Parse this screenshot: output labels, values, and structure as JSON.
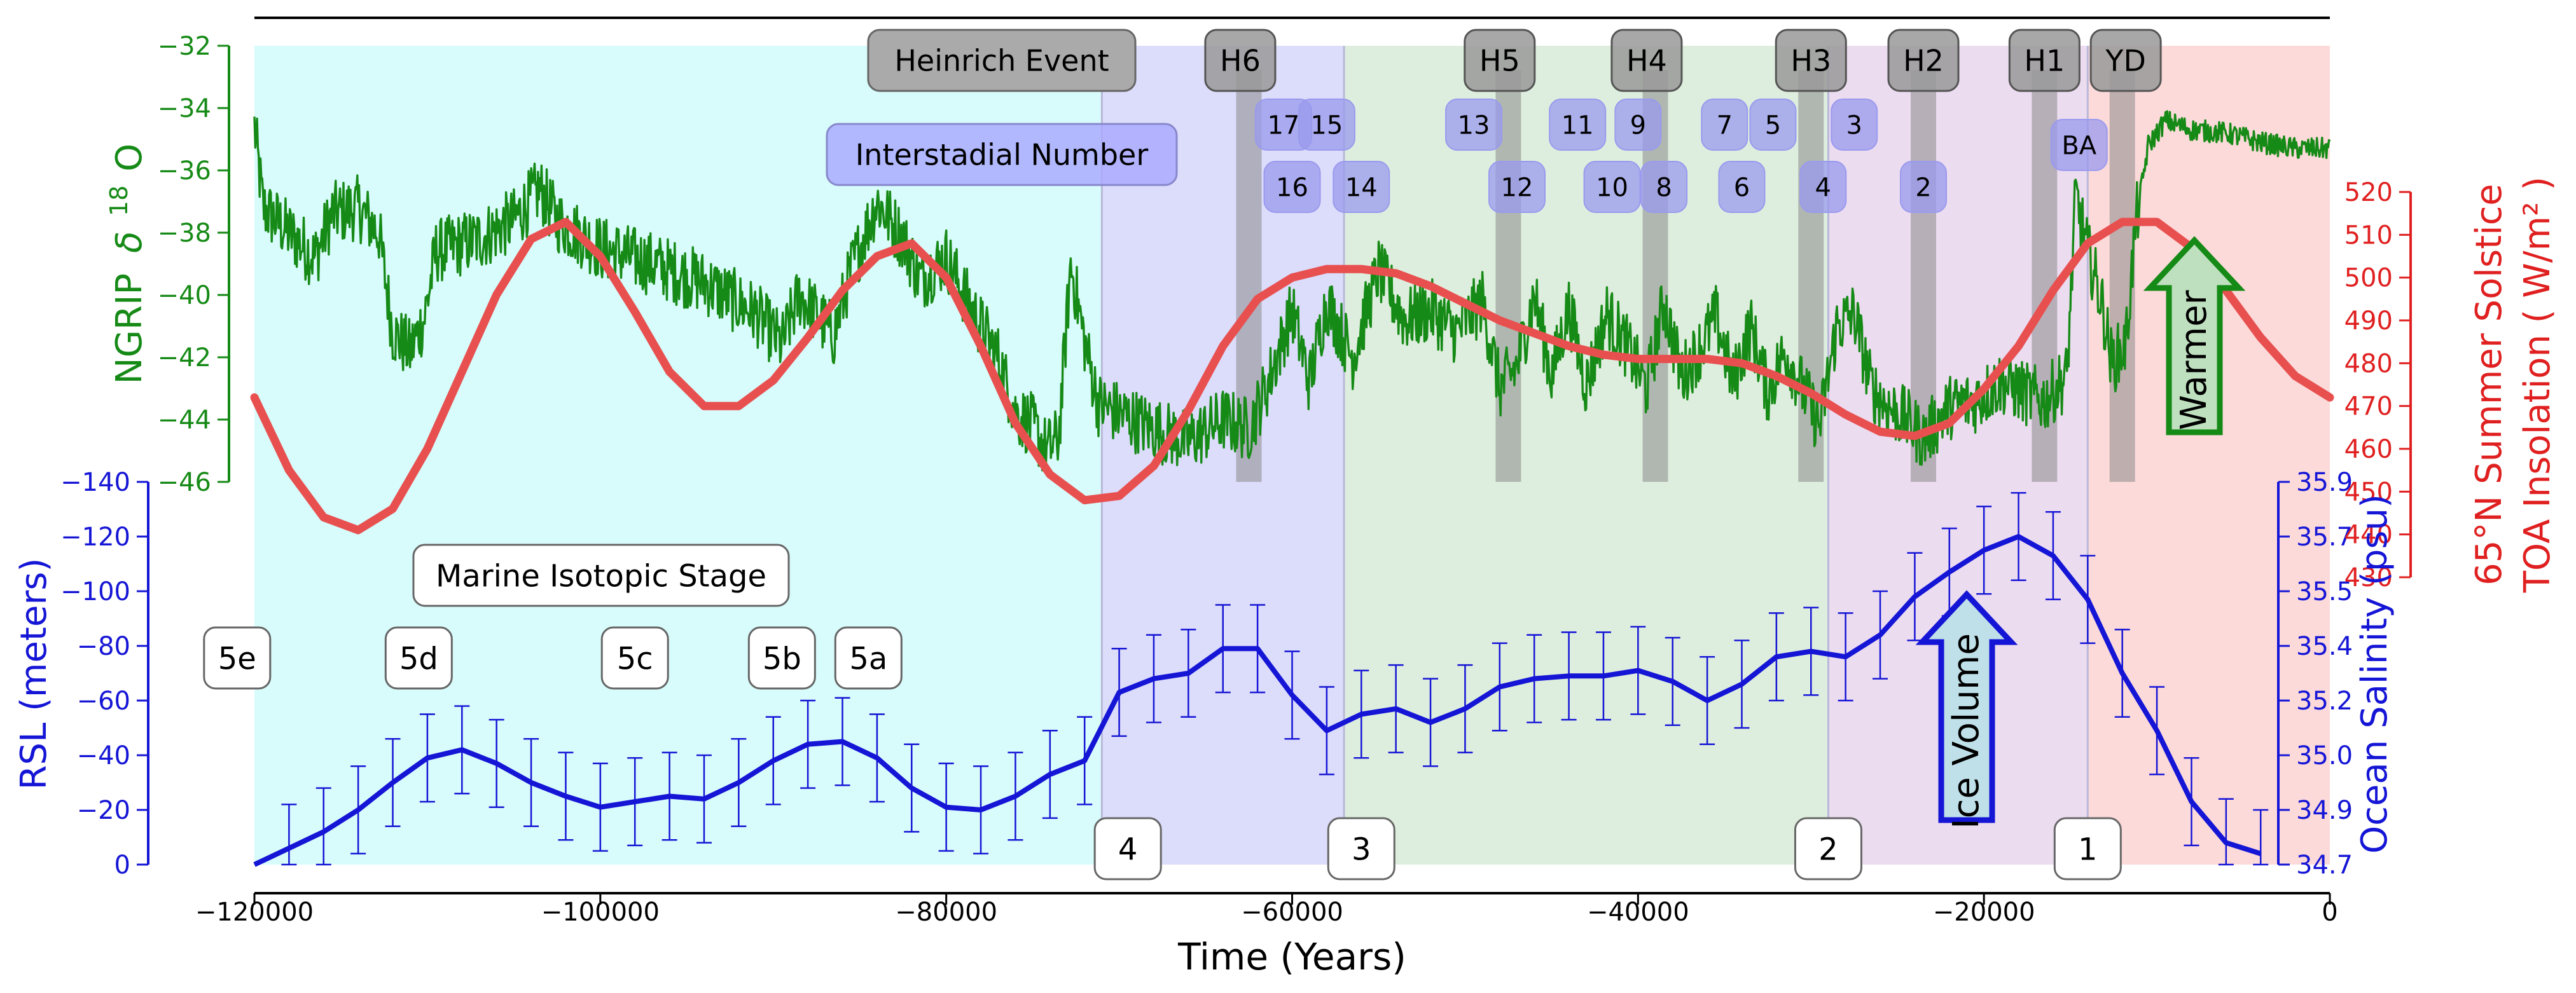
{
  "chart_data": {
    "type": "line",
    "x": {
      "label": "Time (Years)",
      "lim": [
        -120000,
        0
      ],
      "ticks": [
        -120000,
        -100000,
        -80000,
        -60000,
        -40000,
        -20000,
        0
      ],
      "tick_labels": [
        "−120000",
        "−100000",
        "−80000",
        "−60000",
        "−40000",
        "−20000",
        "0"
      ]
    },
    "axes": {
      "ngrip": {
        "label_prefix": "NGRIP",
        "label_delta": "δ",
        "label_sup": "18",
        "label_suffix": "O",
        "lim": [
          -46,
          -32
        ],
        "ticks": [
          -32,
          -34,
          -36,
          -38,
          -40,
          -42,
          -44,
          -46
        ],
        "tick_labels": [
          "−32",
          "−34",
          "−36",
          "−38",
          "−40",
          "−42",
          "−44",
          "−46"
        ],
        "color": "#168a16"
      },
      "rsl": {
        "label": "RSL (meters)",
        "lim": [
          0,
          -140
        ],
        "ticks": [
          0,
          -20,
          -40,
          -60,
          -80,
          -100,
          -120,
          -140
        ],
        "tick_labels": [
          "0",
          "−20",
          "−40",
          "−60",
          "−80",
          "−100",
          "−120",
          "−140"
        ],
        "color": "#1515d6"
      },
      "salinity": {
        "label": "Ocean Salinity (psu)",
        "ticks": [
          34.7,
          34.9,
          35.0,
          35.2,
          35.4,
          35.5,
          35.7,
          35.9
        ],
        "tick_labels": [
          "34.7",
          "34.9",
          "35.0",
          "35.2",
          "35.4",
          "35.5",
          "35.7",
          "35.9"
        ],
        "color": "#1515d6"
      },
      "insolation": {
        "label_line1": "65°N Summer Solstice",
        "label_line2": "TOA Insolation ( W/m² )",
        "lim": [
          430,
          520
        ],
        "ticks": [
          430,
          440,
          450,
          460,
          470,
          480,
          490,
          500,
          510,
          520
        ],
        "tick_labels": [
          "430",
          "440",
          "450",
          "460",
          "470",
          "480",
          "490",
          "500",
          "510",
          "520"
        ],
        "color": "#e02020"
      }
    },
    "stage_bands": [
      {
        "from": -120000,
        "to": -71000,
        "color": "#d8fbfb"
      },
      {
        "from": -71000,
        "to": -57000,
        "color": "#dcdcfb"
      },
      {
        "from": -57000,
        "to": -29000,
        "color": "#deeede"
      },
      {
        "from": -29000,
        "to": -14000,
        "color": "#ecdcf0"
      },
      {
        "from": -14000,
        "to": 0,
        "color": "#fcdada"
      }
    ],
    "heinrich_bars": [
      {
        "label": "H6",
        "x": -62500,
        "label_x": -63000
      },
      {
        "label": "H5",
        "x": -47500,
        "label_x": -48000
      },
      {
        "label": "H4",
        "x": -39000,
        "label_x": -39500
      },
      {
        "label": "H3",
        "x": -30000,
        "label_x": -30000
      },
      {
        "label": "H2",
        "x": -23500,
        "label_x": -23500
      },
      {
        "label": "H1",
        "x": -16500,
        "label_x": -16500
      },
      {
        "label": "YD",
        "x": -12000,
        "label_x": -11800
      }
    ],
    "heinrich_legend": "Heinrich Event",
    "interstadial_legend": "Interstadial Number",
    "interstadials": [
      {
        "label": "17",
        "x": -60500,
        "row": 1
      },
      {
        "label": "15",
        "x": -58000,
        "row": 1
      },
      {
        "label": "13",
        "x": -49500,
        "row": 1
      },
      {
        "label": "11",
        "x": -43500,
        "row": 1
      },
      {
        "label": "9",
        "x": -40000,
        "row": 1
      },
      {
        "label": "7",
        "x": -35000,
        "row": 1
      },
      {
        "label": "5",
        "x": -32200,
        "row": 1
      },
      {
        "label": "3",
        "x": -27500,
        "row": 1
      },
      {
        "label": "BA",
        "x": -14500,
        "row": 1.5
      },
      {
        "label": "16",
        "x": -60000,
        "row": 2
      },
      {
        "label": "14",
        "x": -56000,
        "row": 2
      },
      {
        "label": "12",
        "x": -47000,
        "row": 2
      },
      {
        "label": "10",
        "x": -41500,
        "row": 2
      },
      {
        "label": "8",
        "x": -38500,
        "row": 2
      },
      {
        "label": "6",
        "x": -34000,
        "row": 2
      },
      {
        "label": "4",
        "x": -29300,
        "row": 2
      },
      {
        "label": "2",
        "x": -23500,
        "row": 2
      }
    ],
    "mis_legend": "Marine Isotopic Stage",
    "mis_labels": [
      {
        "label": "5e",
        "x": -121000,
        "row": "mid"
      },
      {
        "label": "5d",
        "x": -110500,
        "row": "mid"
      },
      {
        "label": "5c",
        "x": -98000,
        "row": "mid"
      },
      {
        "label": "5b",
        "x": -89500,
        "row": "mid"
      },
      {
        "label": "5a",
        "x": -84500,
        "row": "mid"
      },
      {
        "label": "4",
        "x": -69500,
        "row": "bottom"
      },
      {
        "label": "3",
        "x": -56000,
        "row": "bottom"
      },
      {
        "label": "2",
        "x": -29000,
        "row": "bottom"
      },
      {
        "label": "1",
        "x": -14000,
        "row": "bottom"
      }
    ],
    "arrows": [
      {
        "label": "Warmer",
        "direction": "up",
        "fill": "#bfe0bf",
        "stroke": "#168a16"
      },
      {
        "label": "Ice Volume",
        "direction": "up",
        "fill": "#bfe0e8",
        "stroke": "#1515d6"
      }
    ],
    "series": [
      {
        "name": "RSL",
        "axis": "rsl",
        "color": "#1515d6",
        "x": [
          -120000,
          -118000,
          -116000,
          -114000,
          -112000,
          -110000,
          -108000,
          -106000,
          -104000,
          -102000,
          -100000,
          -98000,
          -96000,
          -94000,
          -92000,
          -90000,
          -88000,
          -86000,
          -84000,
          -82000,
          -80000,
          -78000,
          -76000,
          -74000,
          -72000,
          -70000,
          -68000,
          -66000,
          -64000,
          -62000,
          -60000,
          -58000,
          -56000,
          -54000,
          -52000,
          -50000,
          -48000,
          -46000,
          -44000,
          -42000,
          -40000,
          -38000,
          -36000,
          -34000,
          -32000,
          -30000,
          -28000,
          -26000,
          -24000,
          -22000,
          -20000,
          -18000,
          -16000,
          -14000,
          -12000,
          -10000,
          -8000,
          -6000,
          -4000
        ],
        "y": [
          0,
          -6,
          -12,
          -20,
          -30,
          -39,
          -42,
          -37,
          -30,
          -25,
          -21,
          -23,
          -25,
          -24,
          -30,
          -38,
          -44,
          -45,
          -39,
          -28,
          -21,
          -20,
          -25,
          -33,
          -38,
          -63,
          -68,
          -70,
          -79,
          -79,
          -62,
          -49,
          -55,
          -57,
          -52,
          -57,
          -65,
          -68,
          -69,
          -69,
          -71,
          -67,
          -60,
          -66,
          -76,
          -78,
          -76,
          -84,
          -98,
          -107,
          -115,
          -120,
          -113,
          -97,
          -70,
          -49,
          -23,
          -8,
          -4
        ],
        "err": 16
      },
      {
        "name": "Insolation",
        "axis": "insolation",
        "color": "#e85050",
        "x": [
          -120000,
          -118000,
          -116000,
          -114000,
          -112000,
          -110000,
          -108000,
          -106000,
          -104000,
          -102000,
          -100000,
          -98000,
          -96000,
          -94000,
          -92000,
          -90000,
          -88000,
          -86000,
          -84000,
          -82000,
          -80000,
          -78000,
          -76000,
          -74000,
          -72000,
          -70000,
          -68000,
          -66000,
          -64000,
          -62000,
          -60000,
          -58000,
          -56000,
          -54000,
          -52000,
          -50000,
          -48000,
          -46000,
          -44000,
          -42000,
          -40000,
          -38000,
          -36000,
          -34000,
          -32000,
          -30000,
          -28000,
          -26000,
          -24000,
          -22000,
          -20000,
          -18000,
          -16000,
          -14000,
          -12000,
          -10000,
          -8000,
          -6000,
          -4000,
          -2000,
          0
        ],
        "y": [
          472,
          455,
          444,
          441,
          446,
          460,
          478,
          496,
          509,
          513,
          505,
          492,
          478,
          470,
          470,
          476,
          486,
          497,
          505,
          508,
          500,
          484,
          466,
          454,
          448,
          449,
          456,
          469,
          484,
          495,
          500,
          502,
          502,
          501,
          498,
          494,
          490,
          487,
          484,
          482,
          481,
          481,
          481,
          480,
          477,
          473,
          468,
          464,
          463,
          466,
          474,
          484,
          497,
          508,
          513,
          513,
          507,
          497,
          486,
          477,
          472
        ]
      }
    ]
  }
}
